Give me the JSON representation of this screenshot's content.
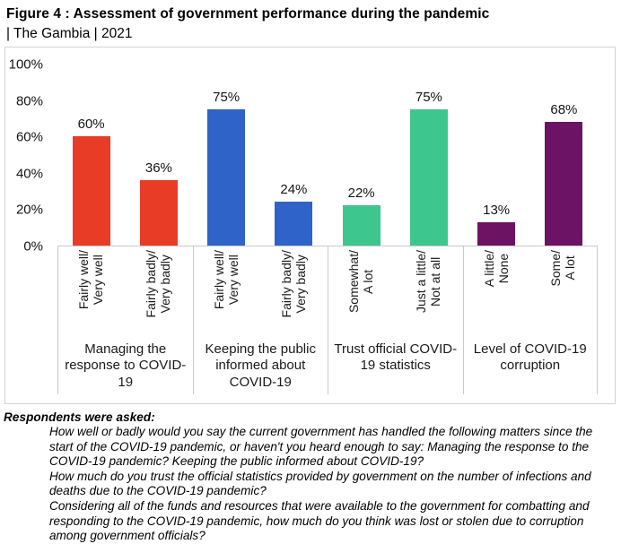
{
  "header": {
    "title": "Figure 4 : Assessment of government performance during the pandemic",
    "subtitle": "| The Gambia | 2021"
  },
  "chart_data": {
    "type": "bar",
    "title": "Assessment of government performance during the pandemic | The Gambia | 2021",
    "ylim": [
      0,
      100
    ],
    "grid": false,
    "value_suffix": "%",
    "yticks": [
      {
        "value": 0,
        "label": "0%"
      },
      {
        "value": 20,
        "label": "20%"
      },
      {
        "value": 40,
        "label": "40%"
      },
      {
        "value": 60,
        "label": "60%"
      },
      {
        "value": 80,
        "label": "80%"
      },
      {
        "value": 100,
        "label": "100%"
      }
    ],
    "groups": [
      {
        "label": "Managing the response to COVID-19",
        "color": "#e83c27",
        "bars": [
          {
            "category": "Fairly well/\nVery well",
            "value": 60,
            "label": "60%"
          },
          {
            "category": "Fairly badly/\nVery badly",
            "value": 36,
            "label": "36%"
          }
        ]
      },
      {
        "label": "Keeping the public informed about COVID-19",
        "color": "#2f63c7",
        "bars": [
          {
            "category": "Fairly well/\nVery well",
            "value": 75,
            "label": "75%"
          },
          {
            "category": "Fairly badly/\nVery badly",
            "value": 24,
            "label": "24%"
          }
        ]
      },
      {
        "label": "Trust official COVID-19 statistics",
        "color": "#3ec68f",
        "bars": [
          {
            "category": "Somewhat/\nA lot",
            "value": 22,
            "label": "22%"
          },
          {
            "category": "Just a little/\nNot at all",
            "value": 75,
            "label": "75%"
          }
        ]
      },
      {
        "label": "Level of COVID-19 corruption",
        "color": "#6c1365",
        "bars": [
          {
            "category": "A little/\nNone",
            "value": 13,
            "label": "13%"
          },
          {
            "category": "Some/\nA lot",
            "value": 68,
            "label": "68%"
          }
        ]
      }
    ]
  },
  "footer": {
    "heading": "Respondents were asked:",
    "questions": [
      "How well or badly would you say the current government has handled the following matters since the start of the COVID-19 pandemic, or haven't you heard enough to say: Managing the response to the COVID-19 pandemic? Keeping the public informed about COVID-19?",
      "How much do you trust the official statistics provided by government on the number of infections and deaths due to the COVID-19 pandemic?",
      "Considering all of the funds and resources that were available to the government for combatting and responding to the COVID-19 pandemic, how much do you think was lost or stolen due to corruption among government officials?"
    ]
  },
  "colors": {
    "red": "#e83c27",
    "blue": "#2f63c7",
    "green": "#3ec68f",
    "purple": "#6c1365",
    "chart_border": "#d2d2d2",
    "axis_line": "#c9c9c9"
  }
}
